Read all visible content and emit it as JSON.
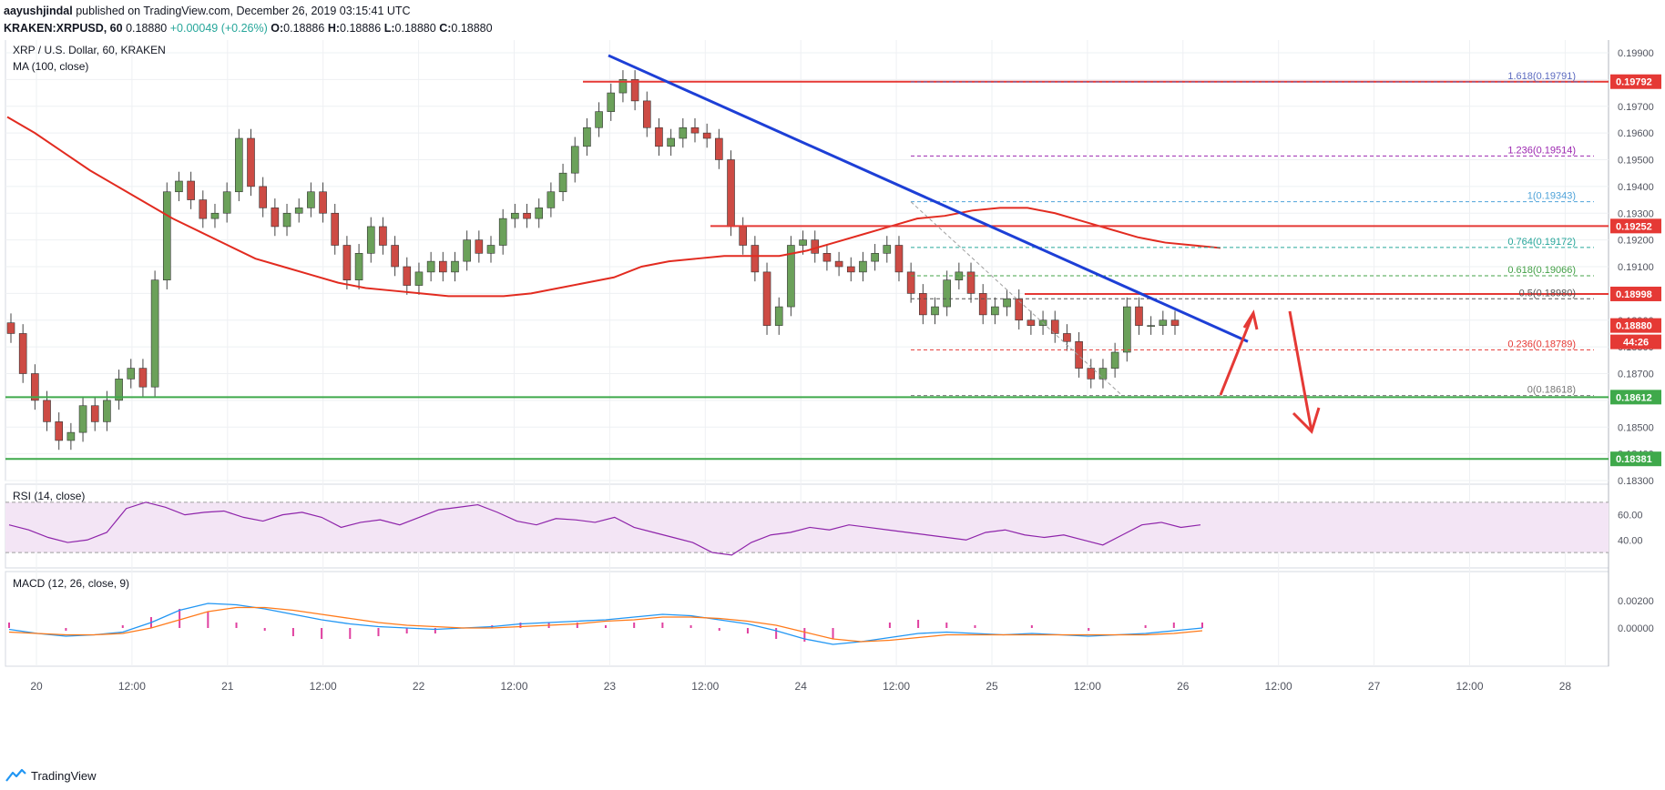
{
  "header": {
    "author": "aayushjindal",
    "published_text": "published on TradingView.com, December 26, 2019 03:15:41 UTC",
    "symbol": "KRAKEN:XRPUSD, 60",
    "last": "0.18880",
    "change": "+0.00049 (+0.26%)",
    "o_label": "O:",
    "o": "0.18886",
    "h_label": "H:",
    "h": "0.18886",
    "l_label": "L:",
    "l": "0.18880",
    "c_label": "C:",
    "c": "0.18880"
  },
  "footer": {
    "brand": "TradingView"
  },
  "colors": {
    "up": "#26a69a",
    "down": "#ef5350",
    "candle_up": "#6ba15a",
    "candle_down": "#cd4b44",
    "ma": "#e22b20",
    "trend": "#1d3fd6",
    "hline_red": "#e53935",
    "hline_green": "#3fa94b",
    "rsi": "#8e24aa",
    "macd": "#2196f3",
    "signal": "#ff7a1a",
    "hist": "#e040a0"
  },
  "chart_data": {
    "type": "candlestick",
    "title": "XRP / U.S. Dollar, 60, KRAKEN",
    "indicator_label": "MA (100, close)",
    "y_ticks": [
      "0.19900",
      "0.19800",
      "0.19700",
      "0.19600",
      "0.19500",
      "0.19400",
      "0.19300",
      "0.19200",
      "0.19100",
      "0.19000",
      "0.18900",
      "0.18800",
      "0.18700",
      "0.18600",
      "0.18500",
      "0.18400",
      "0.18300"
    ],
    "x_ticks": [
      "20",
      "12:00",
      "21",
      "12:00",
      "22",
      "12:00",
      "23",
      "12:00",
      "24",
      "12:00",
      "25",
      "12:00",
      "26",
      "12:00",
      "27",
      "12:00",
      "28"
    ],
    "price_tags": [
      {
        "value": 0.19792,
        "text": "0.19792",
        "color": "#e53935"
      },
      {
        "value": 0.19252,
        "text": "0.19252",
        "color": "#e53935"
      },
      {
        "value": 0.18998,
        "text": "0.18998",
        "color": "#e53935"
      },
      {
        "value": 0.1888,
        "text": "0.18880",
        "color": "#e53935"
      },
      {
        "value": 0.18612,
        "text": "0.18612",
        "color": "#3fa94b"
      },
      {
        "value": 0.18381,
        "text": "0.18381",
        "color": "#3fa94b"
      }
    ],
    "countdown": "44:26",
    "fib_levels": [
      {
        "text": "1.618(0.19791)",
        "value": 0.19791,
        "color": "#5c6bc0"
      },
      {
        "text": "1.236(0.19514)",
        "value": 0.19514,
        "color": "#9c27b0"
      },
      {
        "text": "1(0.19343)",
        "value": 0.19343,
        "color": "#4fa3d9"
      },
      {
        "text": "0.764(0.19172)",
        "value": 0.19172,
        "color": "#26a69a"
      },
      {
        "text": "0.618(0.19066)",
        "value": 0.19066,
        "color": "#43a047"
      },
      {
        "text": "0.5(0.18980)",
        "value": 0.1898,
        "color": "#555555"
      },
      {
        "text": "0.236(0.18789)",
        "value": 0.18789,
        "color": "#e53935"
      },
      {
        "text": "0(0.18618)",
        "value": 0.18618,
        "color": "#777777"
      }
    ],
    "close_series": [
      0.1885,
      0.187,
      0.186,
      0.1852,
      0.1845,
      0.1848,
      0.1858,
      0.1852,
      0.186,
      0.1868,
      0.1872,
      0.1865,
      0.1905,
      0.1938,
      0.1942,
      0.1935,
      0.1928,
      0.193,
      0.1938,
      0.1958,
      0.194,
      0.1932,
      0.1925,
      0.193,
      0.1932,
      0.1938,
      0.193,
      0.1918,
      0.1905,
      0.1915,
      0.1925,
      0.1918,
      0.191,
      0.1903,
      0.1908,
      0.1912,
      0.1908,
      0.1912,
      0.192,
      0.1915,
      0.1918,
      0.1928,
      0.193,
      0.1928,
      0.1932,
      0.1938,
      0.1945,
      0.1955,
      0.1962,
      0.1968,
      0.1975,
      0.198,
      0.1972,
      0.1962,
      0.1955,
      0.1958,
      0.1962,
      0.196,
      0.1958,
      0.195,
      0.1925,
      0.1918,
      0.1908,
      0.1888,
      0.1895,
      0.1918,
      0.192,
      0.1915,
      0.1912,
      0.191,
      0.1908,
      0.1912,
      0.1915,
      0.1918,
      0.1908,
      0.19,
      0.1892,
      0.1895,
      0.1905,
      0.1908,
      0.19,
      0.1892,
      0.1895,
      0.1898,
      0.189,
      0.1888,
      0.189,
      0.1885,
      0.1882,
      0.1872,
      0.1868,
      0.1872,
      0.1878,
      0.1895,
      0.1888,
      0.1888,
      0.189,
      0.1888
    ],
    "ma_series": [
      0.1966,
      0.196,
      0.1953,
      0.1946,
      0.194,
      0.1934,
      0.1928,
      0.1923,
      0.1918,
      0.1913,
      0.191,
      0.1907,
      0.1904,
      0.1902,
      0.1901,
      0.19,
      0.1899,
      0.1899,
      0.1899,
      0.19,
      0.1902,
      0.1904,
      0.1906,
      0.191,
      0.1912,
      0.1913,
      0.1914,
      0.1914,
      0.1914,
      0.1916,
      0.1919,
      0.1922,
      0.1925,
      0.1928,
      0.1929,
      0.1931,
      0.1932,
      0.1932,
      0.193,
      0.1927,
      0.1924,
      0.1921,
      0.1919,
      0.1918,
      0.1917
    ],
    "trendline": {
      "from": 0.1989,
      "to": 0.1882
    },
    "rsi_label": "RSI (14, close)",
    "rsi_ticks": [
      "60.00",
      "40.00"
    ],
    "rsi_series": [
      52,
      48,
      42,
      38,
      40,
      46,
      65,
      70,
      66,
      60,
      62,
      63,
      58,
      55,
      60,
      62,
      58,
      50,
      54,
      56,
      52,
      58,
      64,
      66,
      68,
      62,
      55,
      52,
      57,
      56,
      54,
      58,
      50,
      46,
      42,
      38,
      30,
      28,
      38,
      44,
      46,
      50,
      48,
      52,
      50,
      48,
      46,
      44,
      42,
      40,
      46,
      48,
      44,
      42,
      44,
      40,
      36,
      44,
      52,
      54,
      50,
      52
    ],
    "macd_label": "MACD (12, 26, close, 9)",
    "macd_ticks": [
      "0.00200",
      "0.00000"
    ],
    "macd_series": [
      -0.0001,
      -0.0004,
      -0.0006,
      -0.0005,
      -0.0003,
      0.0004,
      0.0013,
      0.0018,
      0.0017,
      0.0014,
      0.001,
      0.0006,
      0.0003,
      0.0001,
      0.0,
      -0.0001,
      0.0,
      0.0001,
      0.0003,
      0.0004,
      0.0005,
      0.0006,
      0.0008,
      0.001,
      0.0009,
      0.0006,
      0.0003,
      -0.0002,
      -0.0008,
      -0.0012,
      -0.001,
      -0.0007,
      -0.0004,
      -0.0003,
      -0.0004,
      -0.0005,
      -0.0004,
      -0.0005,
      -0.0006,
      -0.0005,
      -0.0004,
      -0.0002,
      0.0
    ],
    "signal_series": [
      -0.0003,
      -0.0004,
      -0.0005,
      -0.0005,
      -0.0004,
      0.0,
      0.0006,
      0.0012,
      0.0015,
      0.0015,
      0.0013,
      0.001,
      0.0007,
      0.0004,
      0.0002,
      0.0001,
      0.0,
      0.0,
      0.0001,
      0.0002,
      0.0003,
      0.0005,
      0.0006,
      0.0008,
      0.0008,
      0.0007,
      0.0005,
      0.0002,
      -0.0003,
      -0.0008,
      -0.001,
      -0.0009,
      -0.0007,
      -0.0005,
      -0.0005,
      -0.0005,
      -0.0005,
      -0.0005,
      -0.0005,
      -0.0005,
      -0.0005,
      -0.0004,
      -0.0002
    ]
  }
}
